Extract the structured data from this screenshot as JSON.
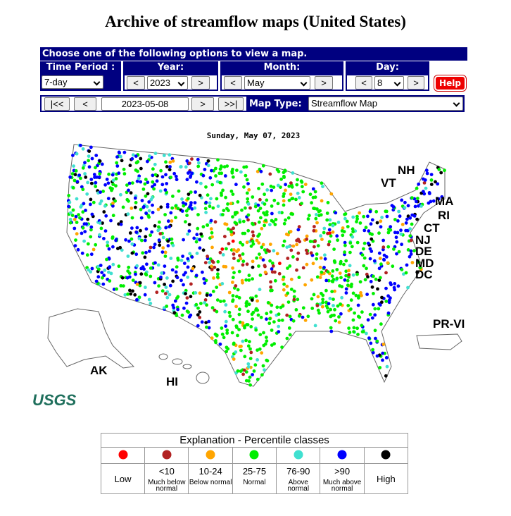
{
  "title": "Archive of streamflow maps (United States)",
  "controls": {
    "header": "Choose one of the following options to view a map.",
    "time_period": {
      "label": "Time Period :",
      "value": "7-day"
    },
    "year": {
      "label": "Year:",
      "prev": "<",
      "value": "2023",
      "next": ">"
    },
    "month": {
      "label": "Month:",
      "prev": "<",
      "value": "May",
      "next": ">"
    },
    "day": {
      "label": "Day:",
      "prev": "<",
      "value": "8",
      "next": ">"
    },
    "help": "Help",
    "nav": {
      "first": "|<<",
      "prev": "<",
      "date": "2023-05-08",
      "next": ">",
      "last": ">>|"
    },
    "map_type": {
      "label": "Map Type:",
      "value": "Streamflow Map"
    }
  },
  "map": {
    "date": "Sunday, May 07, 2023",
    "labels": [
      "NH",
      "VT",
      "MA",
      "RI",
      "CT",
      "NJ",
      "DE",
      "MD",
      "DC",
      "PR-VI",
      "AK",
      "HI"
    ],
    "logo": "USGS"
  },
  "legend": {
    "title": "Explanation - Percentile classes",
    "classes": [
      {
        "color": "#ff0000",
        "label": "Low"
      },
      {
        "color": "#b22222",
        "label": "<10",
        "note": "Much below normal"
      },
      {
        "color": "#ffa500",
        "label": "10-24",
        "note": "Below normal"
      },
      {
        "color": "#00ee00",
        "label": "25-75",
        "note": "Normal"
      },
      {
        "color": "#40e0d0",
        "label": "76-90",
        "note": "Above normal"
      },
      {
        "color": "#0000ff",
        "label": ">90",
        "note": "Much above normal"
      },
      {
        "color": "#000000",
        "label": "High"
      }
    ]
  }
}
